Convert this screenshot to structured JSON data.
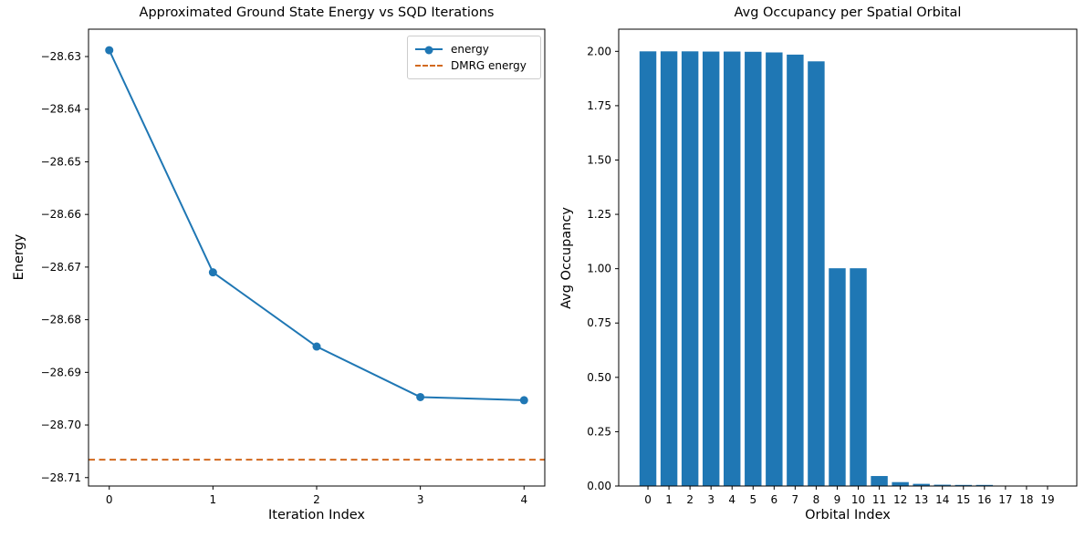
{
  "colors": {
    "background": "#ffffff",
    "axis": "#000000",
    "energy_line": "#1f77b4",
    "dmrg_line": "#d2691e",
    "bar_fill": "#1f77b4"
  },
  "chart_data": [
    {
      "type": "line",
      "title": "Approximated Ground State Energy vs SQD Iterations",
      "xlabel": "Iteration Index",
      "ylabel": "Energy",
      "x": [
        0,
        1,
        2,
        3,
        4
      ],
      "series": [
        {
          "name": "energy",
          "style": "solid",
          "marker": "circle",
          "color": "#1f77b4",
          "values": [
            -28.6288,
            -28.671,
            -28.6851,
            -28.6947,
            -28.6953
          ]
        },
        {
          "name": "DMRG energy",
          "style": "dashed",
          "color": "#d2691e",
          "hline": -28.7066
        }
      ],
      "xlim": [
        -0.2,
        4.2
      ],
      "ylim": [
        -28.7116,
        -28.6248
      ],
      "xticks": [
        0,
        1,
        2,
        3,
        4
      ],
      "xtick_labels": [
        "0",
        "1",
        "2",
        "3",
        "4"
      ],
      "yticks": [
        -28.63,
        -28.64,
        -28.65,
        -28.66,
        -28.67,
        -28.68,
        -28.69,
        -28.7,
        -28.71
      ],
      "ytick_labels": [
        "−28.63",
        "−28.64",
        "−28.65",
        "−28.66",
        "−28.67",
        "−28.68",
        "−28.69",
        "−28.70",
        "−28.71"
      ],
      "legend_position": "upper right",
      "grid": false
    },
    {
      "type": "bar",
      "title": "Avg Occupancy per Spatial Orbital",
      "xlabel": "Orbital Index",
      "ylabel": "Avg Occupancy",
      "categories": [
        "0",
        "1",
        "2",
        "3",
        "4",
        "5",
        "6",
        "7",
        "8",
        "9",
        "10",
        "11",
        "12",
        "13",
        "14",
        "15",
        "16",
        "17",
        "18",
        "19"
      ],
      "values": [
        2.0,
        2.0,
        2.0,
        1.999,
        1.999,
        1.998,
        1.995,
        1.985,
        1.954,
        1.002,
        1.002,
        0.046,
        0.018,
        0.01,
        0.006,
        0.005,
        0.005,
        0.0008,
        0.0004,
        0.0002
      ],
      "bar_color": "#1f77b4",
      "bar_width": 0.8,
      "xlim": [
        -1.39,
        20.39
      ],
      "ylim": [
        0,
        2.102
      ],
      "yticks": [
        0.0,
        0.25,
        0.5,
        0.75,
        1.0,
        1.25,
        1.5,
        1.75,
        2.0
      ],
      "ytick_labels": [
        "0.00",
        "0.25",
        "0.50",
        "0.75",
        "1.00",
        "1.25",
        "1.50",
        "1.75",
        "2.00"
      ],
      "grid": false
    }
  ]
}
